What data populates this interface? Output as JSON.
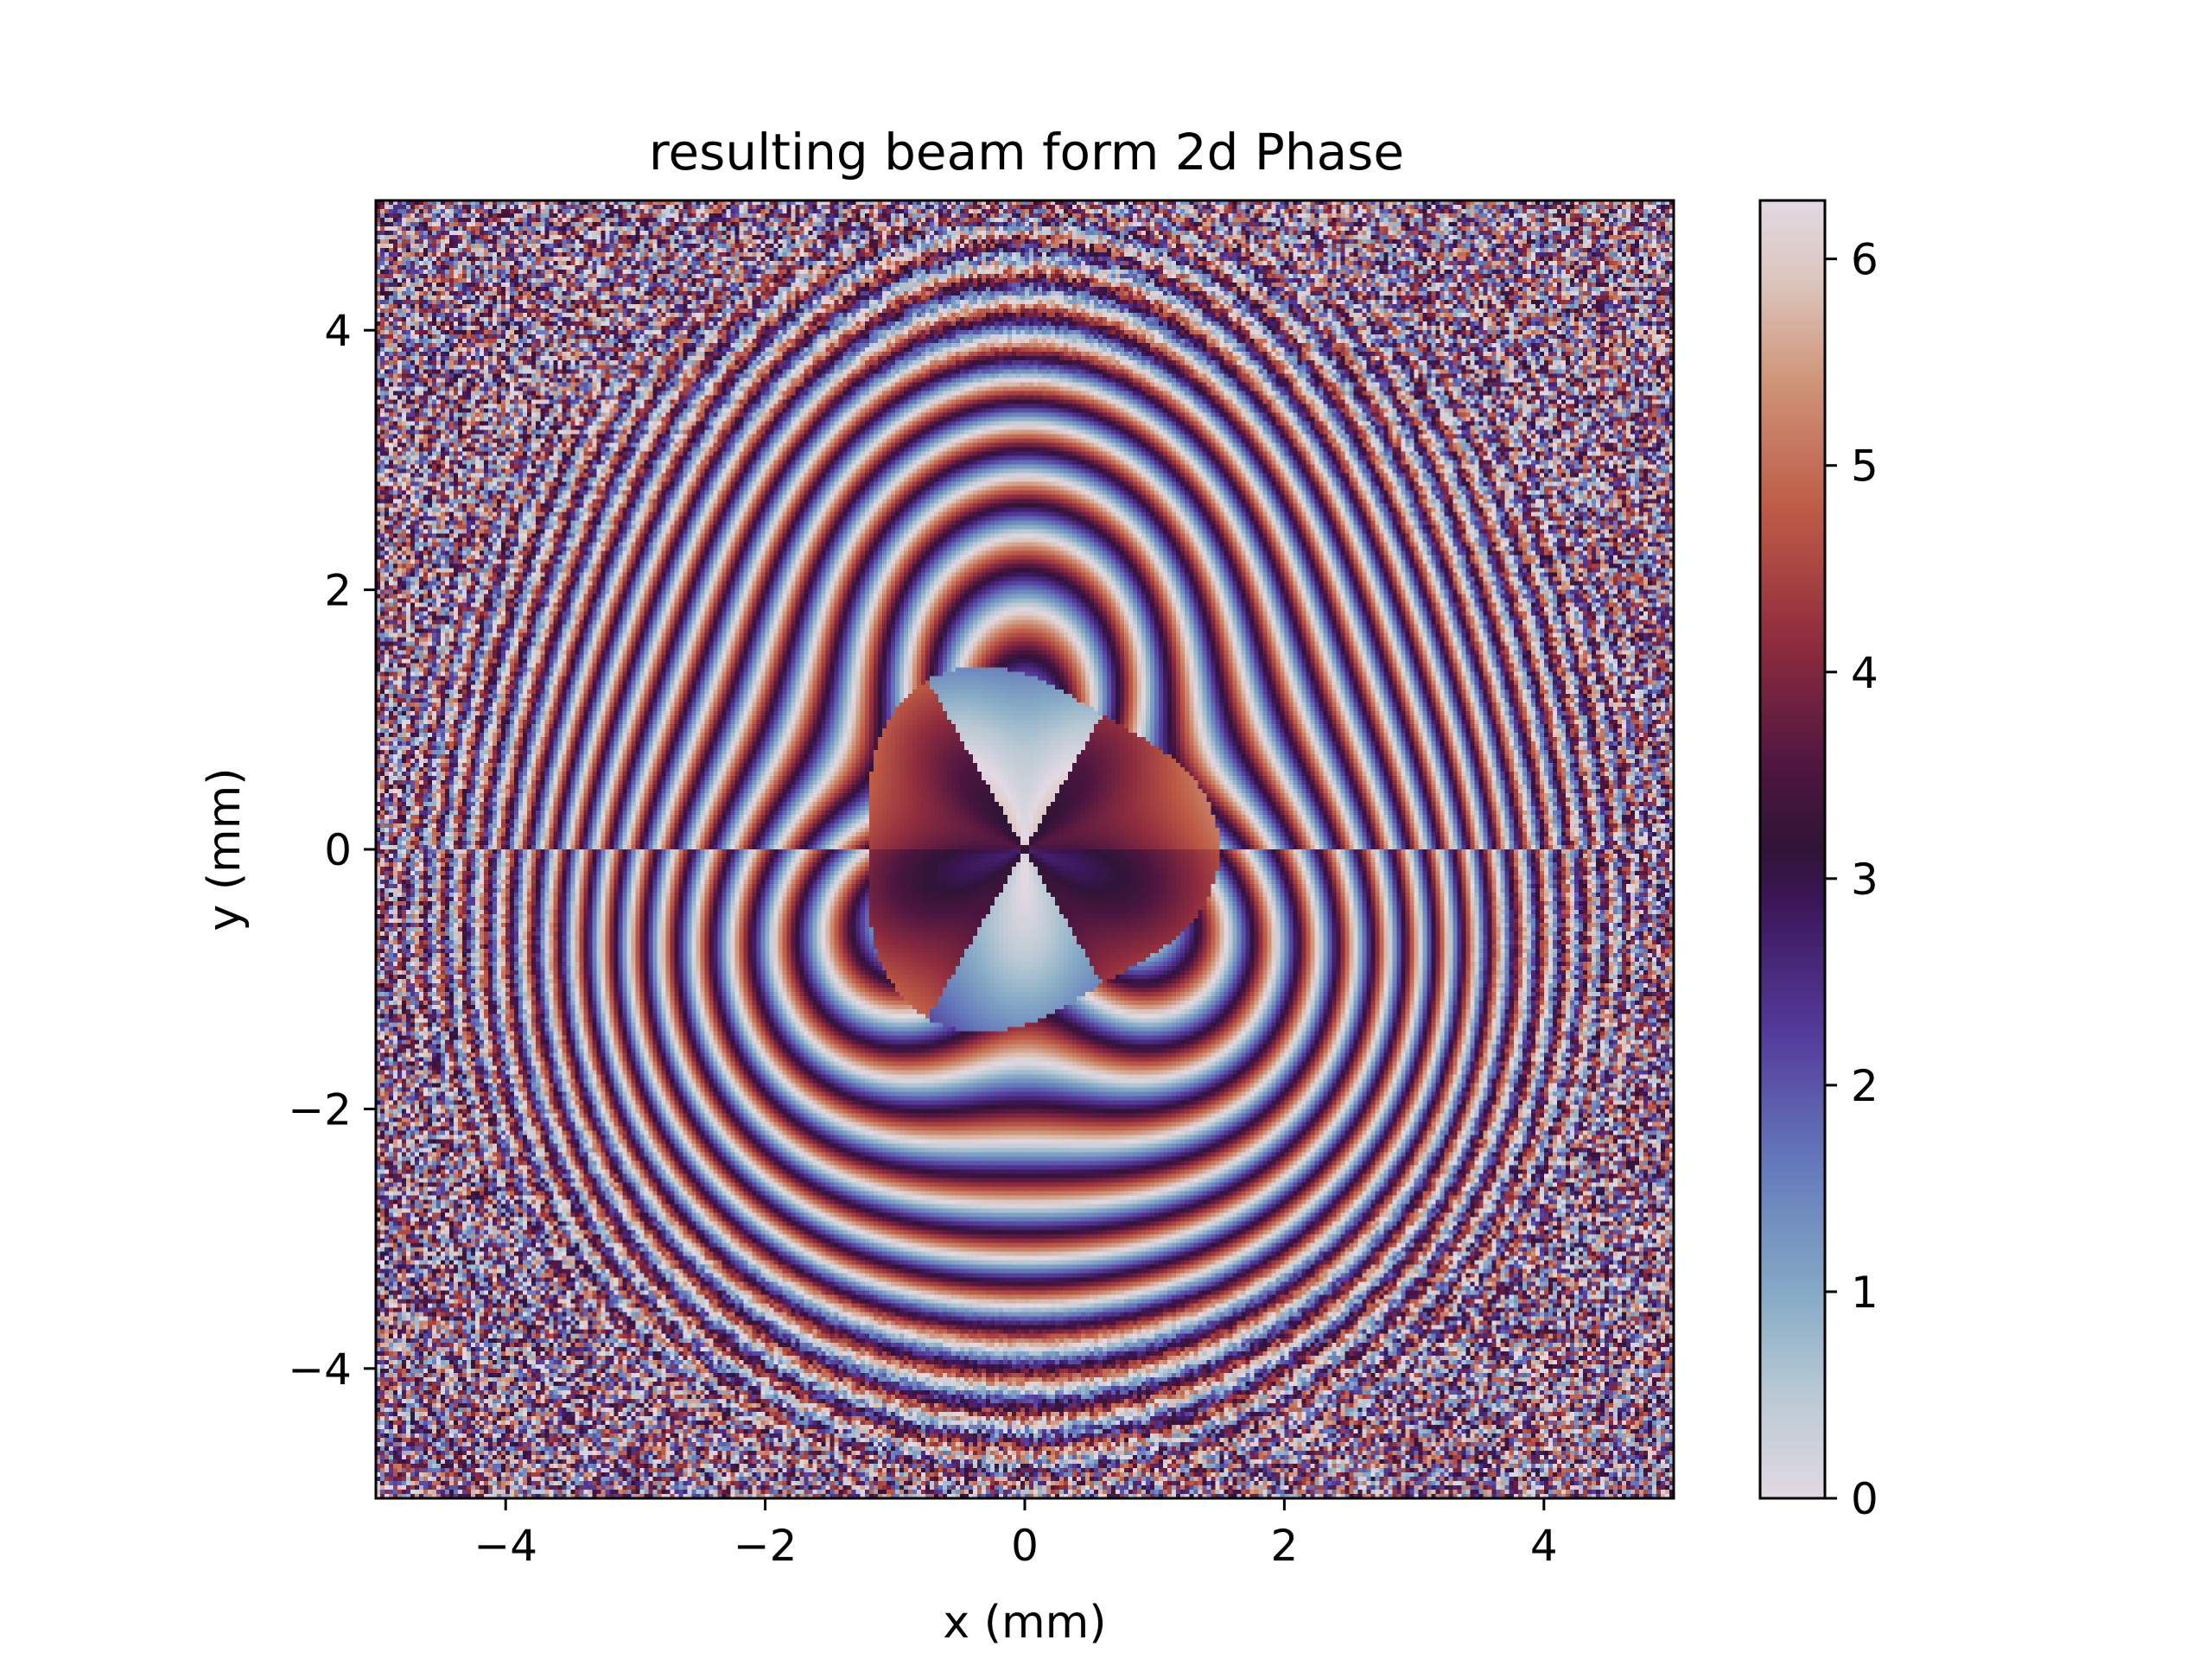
{
  "chart_data": {
    "type": "heatmap",
    "title": "resulting beam form 2d Phase",
    "xlabel": "x (mm)",
    "ylabel": "y (mm)",
    "xlim": [
      -5,
      5
    ],
    "ylim": [
      -5,
      5
    ],
    "xticks": [
      -4,
      -2,
      0,
      2,
      4
    ],
    "yticks": [
      -4,
      -2,
      0,
      2,
      4
    ],
    "xtick_labels": [
      "−4",
      "−2",
      "0",
      "2",
      "4"
    ],
    "ytick_labels": [
      "−4",
      "−2",
      "0",
      "2",
      "4"
    ],
    "grid": false,
    "colormap": "twilight",
    "colorbar": {
      "vmin": 0,
      "vmax": 6.283,
      "ticks": [
        0,
        1,
        2,
        3,
        4,
        5,
        6
      ],
      "tick_labels": [
        "0",
        "1",
        "2",
        "3",
        "4",
        "5",
        "6"
      ]
    },
    "colormap_stops": [
      {
        "v": 0.0,
        "color": "#e2d9e2"
      },
      {
        "v": 0.08,
        "color": "#b9c9d4"
      },
      {
        "v": 0.16,
        "color": "#84a9c5"
      },
      {
        "v": 0.26,
        "color": "#6378bb"
      },
      {
        "v": 0.36,
        "color": "#543a9a"
      },
      {
        "v": 0.46,
        "color": "#3b1658"
      },
      {
        "v": 0.5,
        "color": "#2f1436"
      },
      {
        "v": 0.56,
        "color": "#4c1540"
      },
      {
        "v": 0.66,
        "color": "#8f2c3e"
      },
      {
        "v": 0.76,
        "color": "#bd5a45"
      },
      {
        "v": 0.86,
        "color": "#cf9478"
      },
      {
        "v": 0.94,
        "color": "#dcc6be"
      },
      {
        "v": 1.0,
        "color": "#e2d9e2"
      }
    ],
    "field_description_hidden": true
  }
}
